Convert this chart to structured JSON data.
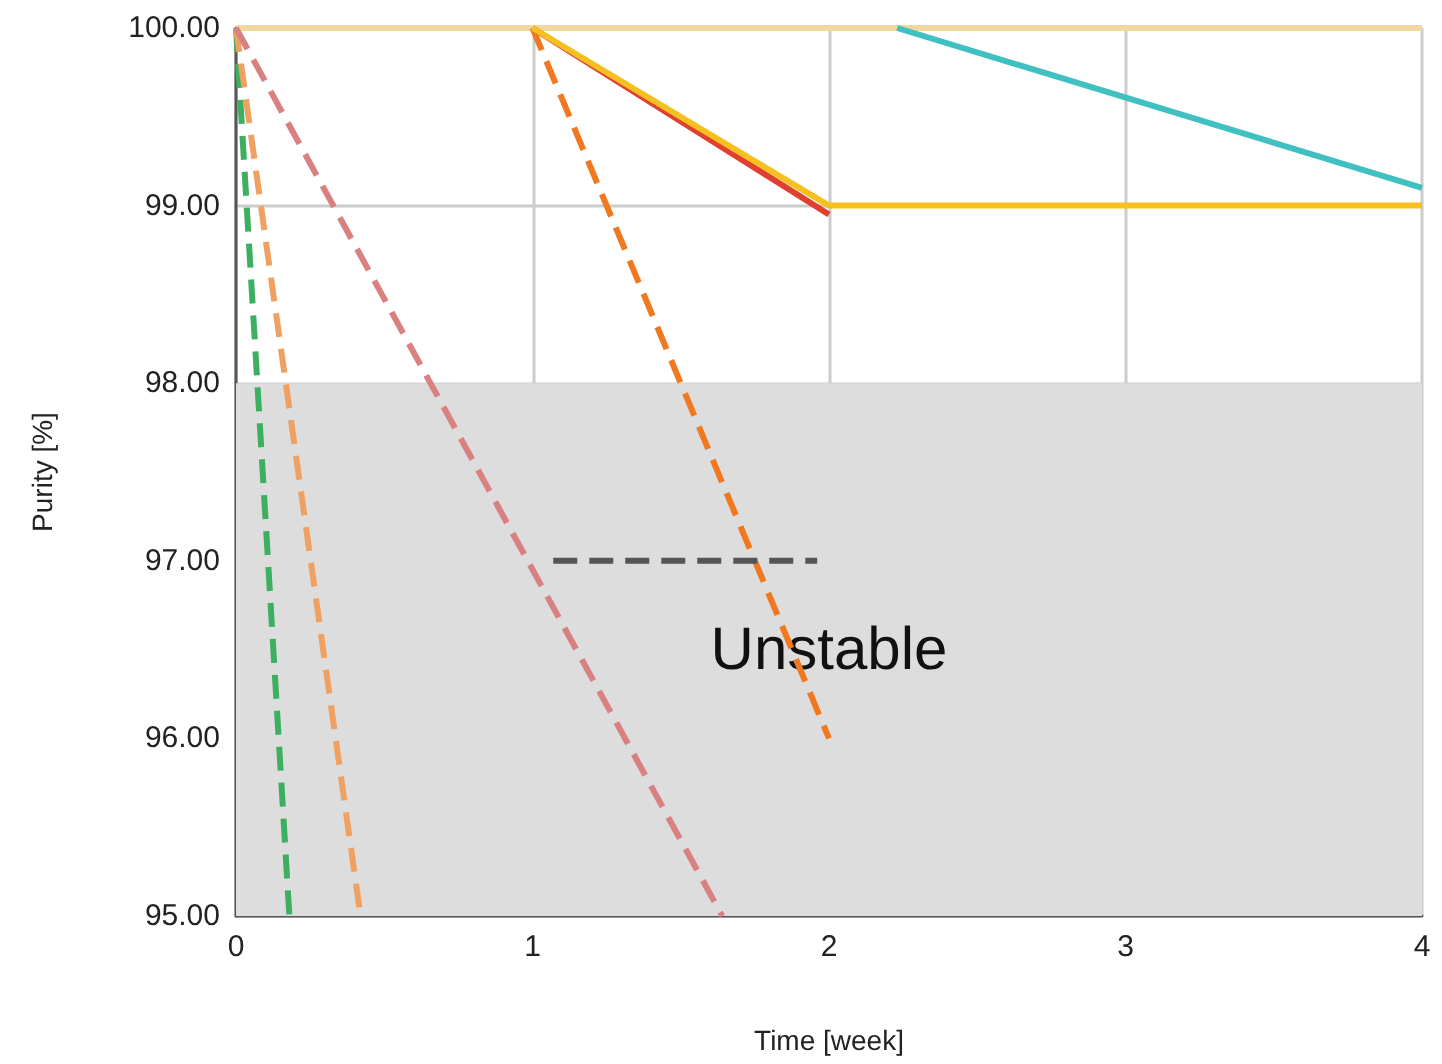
{
  "chart_data": {
    "type": "line",
    "xlabel": "Time [week]",
    "ylabel": "Purity [%]",
    "xlim": [
      0,
      4
    ],
    "xticks": [
      0,
      1,
      2,
      3,
      4
    ],
    "ylim": [
      95,
      100
    ],
    "yticks": [
      {
        "value": 95,
        "label": "95.00"
      },
      {
        "value": 96,
        "label": "96.00"
      },
      {
        "value": 97,
        "label": "97.00"
      },
      {
        "value": 98,
        "label": "98.00"
      },
      {
        "value": 99,
        "label": "99.00"
      },
      {
        "value": 100,
        "label": "100.00"
      }
    ],
    "grid": true,
    "marker": "none",
    "bands": [
      {
        "axis": "y",
        "from": 95,
        "to": 98,
        "label": "Unstable",
        "color": "#dddddd"
      }
    ],
    "series": [
      {
        "color": "#f0d8a0",
        "line_style": "solid",
        "x": [
          0,
          4
        ],
        "values": [
          100,
          100
        ]
      },
      {
        "color": "#3cb060",
        "line_style": "dashed",
        "x": [
          0,
          0.18
        ],
        "values": [
          100,
          95
        ]
      },
      {
        "color": "#f0a060",
        "line_style": "dashed",
        "x": [
          0,
          0.42
        ],
        "values": [
          100,
          95
        ]
      },
      {
        "color": "#d98080",
        "line_style": "dashed",
        "x": [
          0,
          1.64
        ],
        "values": [
          100,
          95
        ]
      },
      {
        "color": "#f07820",
        "line_style": "dashed",
        "x": [
          1,
          2
        ],
        "values": [
          100,
          96
        ]
      },
      {
        "color": "#e04030",
        "line_style": "solid",
        "x": [
          1,
          2
        ],
        "values": [
          100,
          98.95
        ]
      },
      {
        "color": "#f5c020",
        "line_style": "solid",
        "x": [
          1,
          2,
          4
        ],
        "values": [
          100,
          99,
          99
        ]
      },
      {
        "color": "#40c0c0",
        "line_style": "solid",
        "x": [
          2.23,
          4
        ],
        "values": [
          100,
          99.1
        ]
      },
      {
        "color": "#555555",
        "line_style": "dashed",
        "x": [
          1.07,
          1.96
        ],
        "values": [
          97,
          97
        ]
      }
    ]
  }
}
